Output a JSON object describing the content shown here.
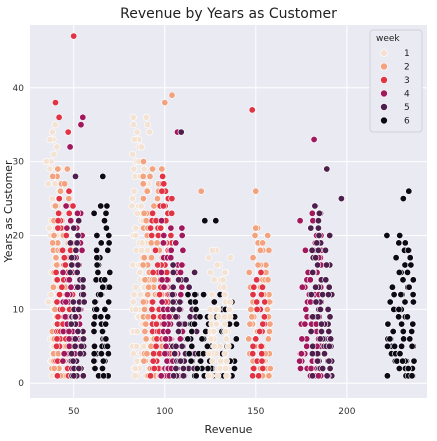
{
  "chart_data": {
    "type": "scatter",
    "title": "Revenue by Years as Customer",
    "xlabel": "Revenue",
    "ylabel": "Years as Customer",
    "xlim": [
      26,
      244
    ],
    "ylim": [
      -2,
      48.5
    ],
    "xticks": [
      50,
      100,
      150,
      200
    ],
    "yticks": [
      0,
      10,
      20,
      30,
      40
    ],
    "grid": true,
    "legend": {
      "title": "week",
      "placement": "top-right",
      "entries": [
        "1",
        "2",
        "3",
        "4",
        "5",
        "6"
      ]
    },
    "colors": {
      "1": "#f4e2d3",
      "2": "#f3a27f",
      "3": "#e13344",
      "4": "#a1185c",
      "5": "#4e1f4d",
      "6": "#0d0a16"
    },
    "background": "#eaeaf2",
    "clusters": [
      {
        "week": "1",
        "x_min": 36,
        "x_max": 43,
        "y_max": 35
      },
      {
        "week": "2",
        "x_min": 38,
        "x_max": 48,
        "y_max": 29
      },
      {
        "week": "3",
        "x_min": 40,
        "x_max": 50,
        "y_max": 26
      },
      {
        "week": "4",
        "x_min": 44,
        "x_max": 55,
        "y_max": 24
      },
      {
        "week": "5",
        "x_min": 48,
        "x_max": 56,
        "y_max": 22
      },
      {
        "week": "6",
        "x_min": 61,
        "x_max": 70,
        "y_max": 24
      },
      {
        "week": "1",
        "x_min": 82,
        "x_max": 92,
        "y_max": 36
      },
      {
        "week": "2",
        "x_min": 88,
        "x_max": 99,
        "y_max": 30
      },
      {
        "week": "3",
        "x_min": 92,
        "x_max": 104,
        "y_max": 28
      },
      {
        "week": "4",
        "x_min": 98,
        "x_max": 110,
        "y_max": 22
      },
      {
        "week": "5",
        "x_min": 104,
        "x_max": 118,
        "y_max": 16
      },
      {
        "week": "6",
        "x_min": 112,
        "x_max": 140,
        "y_max": 12
      },
      {
        "week": "1",
        "x_min": 124,
        "x_max": 136,
        "y_max": 18
      },
      {
        "week": "2",
        "x_min": 146,
        "x_max": 158,
        "y_max": 21
      },
      {
        "week": "3",
        "x_min": 148,
        "x_max": 155,
        "y_max": 15
      },
      {
        "week": "4",
        "x_min": 174,
        "x_max": 186,
        "y_max": 23
      },
      {
        "week": "5",
        "x_min": 180,
        "x_max": 192,
        "y_max": 24
      },
      {
        "week": "6",
        "x_min": 222,
        "x_max": 237,
        "y_max": 19
      }
    ],
    "points": [
      {
        "week": "3",
        "x": 50,
        "y": 47
      },
      {
        "week": "2",
        "x": 104,
        "y": 39
      },
      {
        "week": "2",
        "x": 100,
        "y": 38
      },
      {
        "week": "3",
        "x": 40,
        "y": 38
      },
      {
        "week": "3",
        "x": 42,
        "y": 36
      },
      {
        "week": "4",
        "x": 55,
        "y": 36
      },
      {
        "week": "4",
        "x": 54,
        "y": 35
      },
      {
        "week": "3",
        "x": 47,
        "y": 34
      },
      {
        "week": "4",
        "x": 107,
        "y": 34
      },
      {
        "week": "5",
        "x": 109,
        "y": 34
      },
      {
        "week": "3",
        "x": 148,
        "y": 37
      },
      {
        "week": "4",
        "x": 48,
        "y": 32
      },
      {
        "week": "4",
        "x": 182,
        "y": 33
      },
      {
        "week": "5",
        "x": 51,
        "y": 28
      },
      {
        "week": "6",
        "x": 66,
        "y": 28
      },
      {
        "week": "5",
        "x": 189,
        "y": 29
      },
      {
        "week": "2",
        "x": 150,
        "y": 26
      },
      {
        "week": "2",
        "x": 120,
        "y": 26
      },
      {
        "week": "5",
        "x": 197,
        "y": 25
      },
      {
        "week": "6",
        "x": 234,
        "y": 26
      },
      {
        "week": "6",
        "x": 231,
        "y": 25
      },
      {
        "week": "6",
        "x": 122,
        "y": 22
      },
      {
        "week": "6",
        "x": 128,
        "y": 22
      },
      {
        "week": "6",
        "x": 229,
        "y": 20
      },
      {
        "week": "6",
        "x": 222,
        "y": 20
      },
      {
        "week": "1",
        "x": 35,
        "y": 30
      },
      {
        "week": "1",
        "x": 37,
        "y": 33
      }
    ]
  }
}
